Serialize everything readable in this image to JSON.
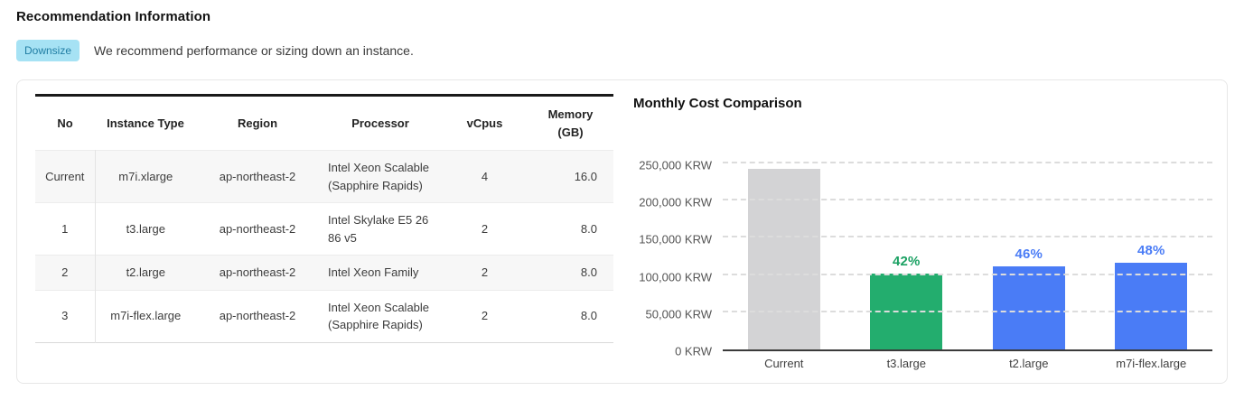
{
  "header": {
    "title": "Recommendation Information",
    "badge_label": "Downsize",
    "badge_bg": "#a6e2f4",
    "badge_text_color": "#217ea4",
    "message": "We recommend performance or sizing down an instance."
  },
  "table": {
    "columns": [
      "No",
      "Instance Type",
      "Region",
      "Processor",
      "vCpus",
      "Memory (GB)"
    ],
    "rows": [
      {
        "no": "Current",
        "instance_type": "m7i.xlarge",
        "region": "ap-northeast-2",
        "processor": "Intel Xeon Scalable (Sapphire Rapids)",
        "vcpus": "4",
        "memory_gb": "16.0"
      },
      {
        "no": "1",
        "instance_type": "t3.large",
        "region": "ap-northeast-2",
        "processor": "Intel Skylake E5 2686 v5",
        "vcpus": "2",
        "memory_gb": "8.0"
      },
      {
        "no": "2",
        "instance_type": "t2.large",
        "region": "ap-northeast-2",
        "processor": "Intel Xeon Family",
        "vcpus": "2",
        "memory_gb": "8.0"
      },
      {
        "no": "3",
        "instance_type": "m7i-flex.large",
        "region": "ap-northeast-2",
        "processor": "Intel Xeon Scalable (Sapphire Rapids)",
        "vcpus": "2",
        "memory_gb": "8.0"
      }
    ]
  },
  "chart_data": {
    "type": "bar",
    "title": "Monthly Cost Comparison",
    "categories": [
      "Current",
      "t3.large",
      "t2.large",
      "m7i-flex.large"
    ],
    "values": [
      243000,
      102000,
      112000,
      116500
    ],
    "bar_labels": [
      "",
      "42%",
      "46%",
      "48%"
    ],
    "bar_colors": [
      "#d3d3d5",
      "#23ad6e",
      "#4a7cf6",
      "#4a7cf6"
    ],
    "label_colors": [
      "",
      "#1ba163",
      "#4a7cf6",
      "#4a7cf6"
    ],
    "yticks": [
      "0 KRW",
      "50,000 KRW",
      "100,000 KRW",
      "150,000 KRW",
      "200,000 KRW",
      "250,000 KRW"
    ],
    "ymax": 250000,
    "ylim": [
      0,
      250000
    ],
    "xlabel": "",
    "ylabel": "KRW",
    "grid": "horizontal-dashed",
    "legend": "none"
  }
}
